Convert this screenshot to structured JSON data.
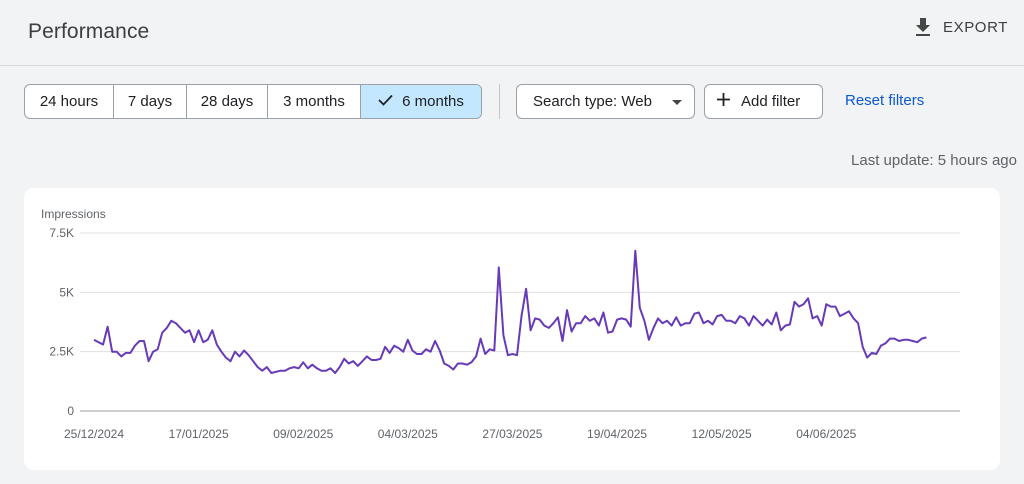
{
  "header": {
    "title": "Performance",
    "export_label": "EXPORT"
  },
  "date_range": {
    "options": [
      {
        "label": "24 hours",
        "selected": false
      },
      {
        "label": "7 days",
        "selected": false
      },
      {
        "label": "28 days",
        "selected": false
      },
      {
        "label": "3 months",
        "selected": false
      },
      {
        "label": "6 months",
        "selected": true
      }
    ]
  },
  "filters": {
    "search_type_label": "Search type: Web",
    "add_filter_label": "Add filter",
    "reset_label": "Reset filters"
  },
  "last_update": "Last update: 5 hours ago",
  "colors": {
    "accent": "#673ab7",
    "selected_bg": "#c2e7ff",
    "link": "#0b57d0"
  },
  "icons": {
    "export": "download-icon",
    "selected": "check-icon",
    "dropdown": "caret-down-icon",
    "add": "plus-icon"
  },
  "chart_data": {
    "type": "line",
    "ylabel": "Impressions",
    "ylim": [
      0,
      7500
    ],
    "yticks": [
      {
        "value": 0,
        "label": "0"
      },
      {
        "value": 2500,
        "label": "2.5K"
      },
      {
        "value": 5000,
        "label": "5K"
      },
      {
        "value": 7500,
        "label": "7.5K"
      }
    ],
    "xlim": [
      "2024-12-25",
      "2025-06-29"
    ],
    "xticks": [
      "25/12/2024",
      "17/01/2025",
      "09/02/2025",
      "04/03/2025",
      "27/03/2025",
      "19/04/2025",
      "12/05/2025",
      "04/06/2025"
    ],
    "grid": true,
    "series": [
      {
        "x_start": "2024-12-25",
        "x_step": "1 day",
        "values": [
          3000,
          2900,
          2800,
          3550,
          2500,
          2500,
          2300,
          2450,
          2450,
          2750,
          2950,
          2950,
          2100,
          2500,
          2600,
          3300,
          3500,
          3800,
          3700,
          3500,
          3300,
          3400,
          2900,
          3400,
          2900,
          3000,
          3400,
          2800,
          2500,
          2250,
          2100,
          2500,
          2300,
          2550,
          2350,
          2100,
          1850,
          1700,
          1850,
          1600,
          1650,
          1700,
          1700,
          1800,
          1850,
          1800,
          2050,
          1800,
          1950,
          1800,
          1700,
          1700,
          1800,
          1600,
          1850,
          2200,
          2000,
          2100,
          1900,
          2100,
          2300,
          2150,
          2150,
          2200,
          2700,
          2450,
          2750,
          2650,
          2500,
          3000,
          2550,
          2400,
          2400,
          2600,
          2500,
          2950,
          2550,
          2000,
          1900,
          1750,
          2000,
          2000,
          1950,
          2050,
          2300,
          3050,
          2400,
          2600,
          2550,
          6050,
          3200,
          2350,
          2400,
          2350,
          4000,
          5150,
          3400,
          3900,
          3850,
          3600,
          3500,
          3700,
          3950,
          2950,
          4250,
          3350,
          3700,
          3700,
          4000,
          3800,
          3900,
          3600,
          4150,
          3300,
          3350,
          3850,
          3900,
          3850,
          3550,
          6750,
          4350,
          3800,
          3000,
          3500,
          3900,
          3700,
          3800,
          3600,
          3950,
          3600,
          3700,
          3700,
          4100,
          4150,
          3700,
          3800,
          3650,
          4000,
          4050,
          3800,
          3800,
          3700,
          4000,
          3900,
          3600,
          4000,
          3800,
          3600,
          3850,
          3650,
          4150,
          3400,
          3600,
          3650,
          4600,
          4400,
          4500,
          4750,
          3900,
          4000,
          3600,
          4500,
          4400,
          4400,
          4000,
          4100,
          4200,
          3900,
          3700,
          2700,
          2250,
          2450,
          2400,
          2750,
          2850,
          3050,
          3050,
          2950,
          3000,
          3000,
          2950,
          2900,
          3050,
          3100
        ]
      }
    ]
  }
}
